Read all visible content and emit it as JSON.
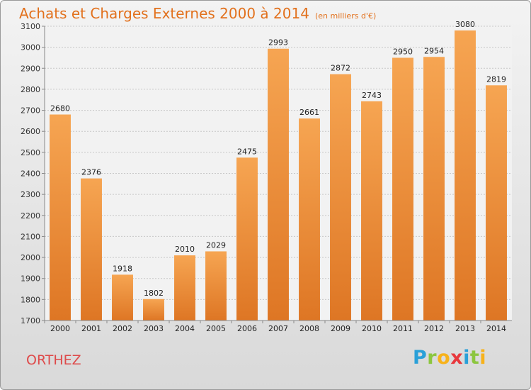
{
  "chart_data": {
    "type": "bar",
    "title": "Achats et Charges Externes 2000 à 2014",
    "subtitle": "(en milliers d'€)",
    "categories": [
      "2000",
      "2001",
      "2002",
      "2003",
      "2004",
      "2005",
      "2006",
      "2007",
      "2008",
      "2009",
      "2010",
      "2011",
      "2012",
      "2013",
      "2014"
    ],
    "values": [
      2680,
      2376,
      1918,
      1802,
      2010,
      2029,
      2475,
      2993,
      2661,
      2872,
      2743,
      2950,
      2954,
      3080,
      2819
    ],
    "yticks": [
      1700,
      1800,
      1900,
      2000,
      2100,
      2200,
      2300,
      2400,
      2500,
      2600,
      2700,
      2800,
      2900,
      3000,
      3100
    ],
    "ylim": [
      1700,
      3100
    ],
    "xlabel": "",
    "ylabel": "",
    "grid": true,
    "bar_color_light": "#f6a552",
    "bar_color_dark": "#de7624"
  },
  "footer": {
    "city": "ORTHEZ",
    "logo_letters": [
      {
        "char": "P",
        "color": "#2aa0d8"
      },
      {
        "char": "r",
        "color": "#8cc63f"
      },
      {
        "char": "o",
        "color": "#f7b21b"
      },
      {
        "char": "x",
        "color": "#e8383d"
      },
      {
        "char": "i",
        "color": "#2aa0d8"
      },
      {
        "char": "t",
        "color": "#8cc63f"
      },
      {
        "char": "i",
        "color": "#f7b21b"
      }
    ]
  }
}
